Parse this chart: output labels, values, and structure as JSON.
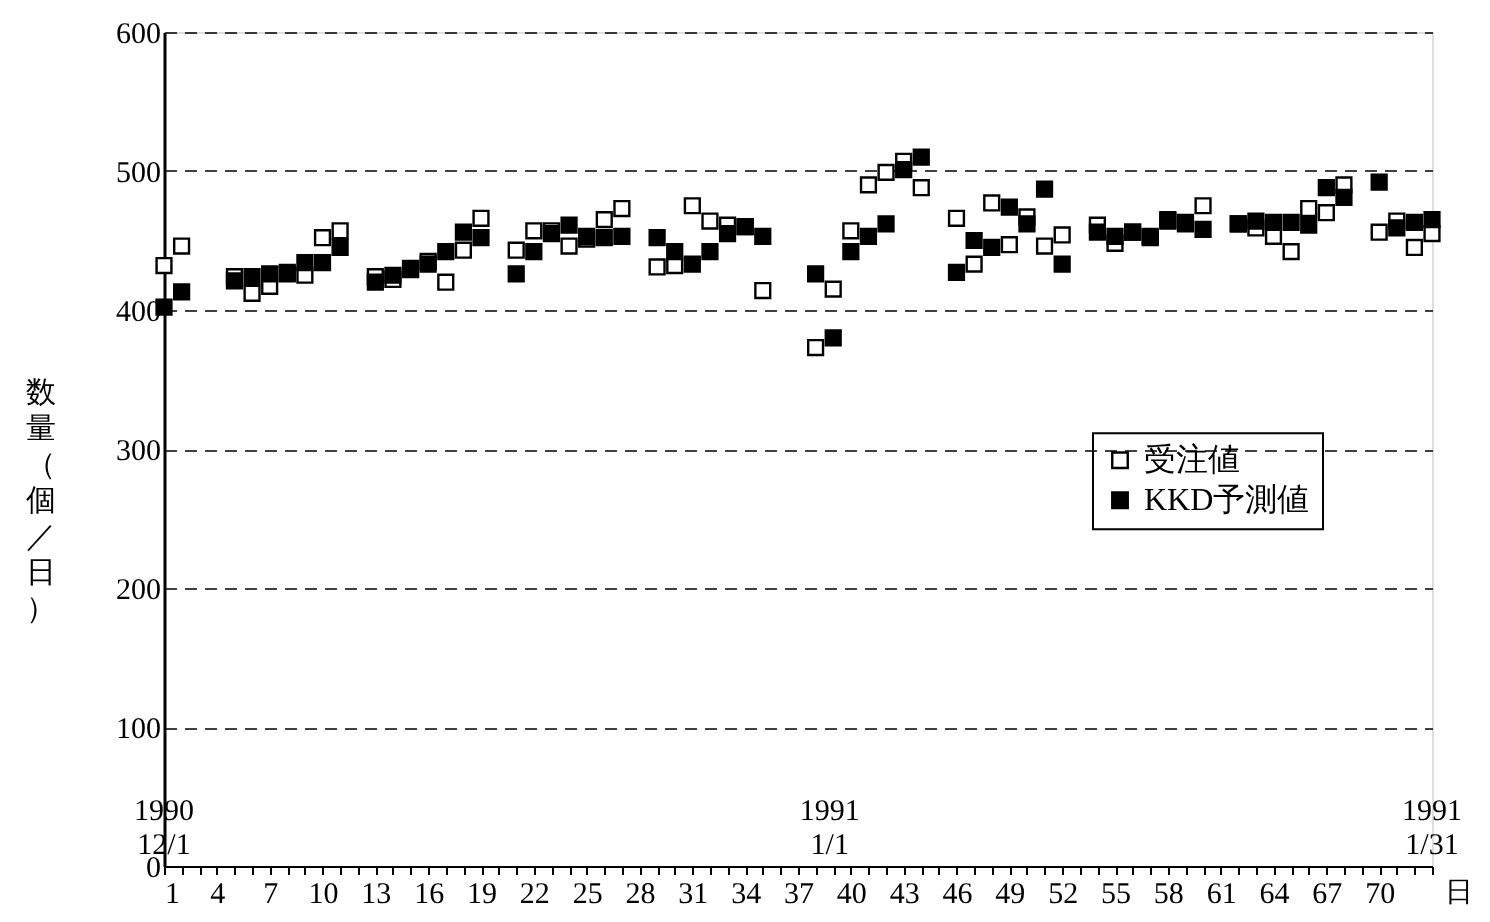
{
  "chart_data": {
    "type": "scatter",
    "marker": "square",
    "ylabel": "数量（個／日）",
    "xlabel": "日",
    "xlim": [
      1,
      73
    ],
    "ylim": [
      0,
      600
    ],
    "yticks": [
      0,
      100,
      200,
      300,
      400,
      500,
      600
    ],
    "grid": "y",
    "legend": "right",
    "xticks": [
      1,
      {
        "value": 2,
        "label": null
      },
      {
        "value": 3,
        "label": null
      },
      4,
      {
        "value": 5,
        "label": null
      },
      {
        "value": 6,
        "label": null
      },
      7,
      {
        "value": 8,
        "label": null
      },
      {
        "value": 9,
        "label": null
      },
      10,
      {
        "value": 11,
        "label": null
      },
      {
        "value": 12,
        "label": null
      },
      13,
      {
        "value": 14,
        "label": null
      },
      {
        "value": 15,
        "label": null
      },
      16,
      {
        "value": 17,
        "label": null
      },
      {
        "value": 18,
        "label": null
      },
      19,
      {
        "value": 20,
        "label": null
      },
      {
        "value": 21,
        "label": null
      },
      22,
      {
        "value": 23,
        "label": null
      },
      {
        "value": 24,
        "label": null
      },
      25,
      {
        "value": 26,
        "label": null
      },
      {
        "value": 27,
        "label": null
      },
      28,
      {
        "value": 29,
        "label": null
      },
      {
        "value": 30,
        "label": null
      },
      31,
      {
        "value": 32,
        "label": null
      },
      {
        "value": 33,
        "label": null
      },
      34,
      {
        "value": 35,
        "label": null
      },
      {
        "value": 36,
        "label": null
      },
      37,
      {
        "value": 38,
        "label": null
      },
      {
        "value": 39,
        "label": null
      },
      40,
      {
        "value": 41,
        "label": null
      },
      {
        "value": 42,
        "label": null
      },
      43,
      {
        "value": 44,
        "label": null
      },
      {
        "value": 45,
        "label": null
      },
      46,
      {
        "value": 47,
        "label": null
      },
      {
        "value": 48,
        "label": null
      },
      49,
      {
        "value": 50,
        "label": null
      },
      {
        "value": 51,
        "label": null
      },
      52,
      {
        "value": 53,
        "label": null
      },
      {
        "value": 54,
        "label": null
      },
      55,
      {
        "value": 56,
        "label": null
      },
      {
        "value": 57,
        "label": null
      },
      58,
      {
        "value": 59,
        "label": null
      },
      {
        "value": 60,
        "label": null
      },
      61,
      {
        "value": 62,
        "label": null
      },
      {
        "value": 63,
        "label": null
      },
      64,
      {
        "value": 65,
        "label": null
      },
      {
        "value": 66,
        "label": null
      },
      67,
      {
        "value": 68,
        "label": null
      },
      {
        "value": 69,
        "label": null
      },
      70,
      {
        "value": 71,
        "label": null
      },
      {
        "value": 72,
        "label": null
      },
      {
        "value": 73,
        "label": null
      }
    ],
    "annotations": [
      "1990\n12/1",
      "1991\n1/1",
      "1991\n1/31"
    ],
    "series": [
      {
        "name": "受注値",
        "color": "#000000",
        "x": [
          1,
          2,
          5,
          6,
          7,
          8,
          9,
          10,
          11,
          13,
          14,
          15,
          16,
          17,
          18,
          19,
          21,
          22,
          23,
          24,
          25,
          26,
          27,
          29,
          30,
          31,
          32,
          33,
          34,
          35,
          38,
          39,
          40,
          41,
          42,
          43,
          44,
          46,
          47,
          48,
          49,
          50,
          51,
          52,
          54,
          55,
          56,
          57,
          58,
          59,
          60,
          62,
          63,
          64,
          65,
          66,
          67,
          68,
          70,
          71,
          72,
          73
        ],
        "values": [
          432,
          446,
          424,
          412,
          417,
          426,
          425,
          452,
          457,
          424,
          422,
          429,
          435,
          420,
          443,
          466,
          443,
          457,
          457,
          446,
          451,
          465,
          473,
          431,
          432,
          475,
          464,
          461,
          460,
          414,
          373,
          415,
          457,
          490,
          499,
          507,
          488,
          466,
          433,
          477,
          447,
          467,
          446,
          454,
          461,
          448,
          456,
          453,
          465,
          463,
          475,
          462,
          459,
          453,
          442,
          473,
          470,
          490,
          456,
          464,
          445,
          455
        ]
      },
      {
        "name": "KKD予測値",
        "color": "#000000",
        "x": [
          1,
          2,
          5,
          6,
          7,
          8,
          9,
          10,
          11,
          13,
          14,
          15,
          16,
          17,
          18,
          19,
          21,
          22,
          23,
          24,
          25,
          26,
          27,
          29,
          30,
          31,
          32,
          33,
          34,
          35,
          38,
          39,
          40,
          41,
          42,
          43,
          44,
          46,
          47,
          48,
          49,
          50,
          51,
          52,
          54,
          55,
          56,
          57,
          58,
          59,
          60,
          62,
          63,
          64,
          65,
          66,
          67,
          68,
          70,
          71,
          72,
          73
        ],
        "values": [
          402,
          413,
          421,
          424,
          426,
          427,
          434,
          434,
          445,
          420,
          425,
          430,
          433,
          442,
          456,
          452,
          426,
          442,
          455,
          461,
          453,
          452,
          453,
          452,
          442,
          433,
          442,
          455,
          460,
          453,
          426,
          380,
          442,
          453,
          462,
          501,
          510,
          427,
          450,
          445,
          474,
          462,
          487,
          433,
          456,
          453,
          456,
          452,
          464,
          462,
          458,
          462,
          464,
          463,
          463,
          461,
          488,
          481,
          492,
          459,
          463,
          465
        ]
      }
    ]
  }
}
